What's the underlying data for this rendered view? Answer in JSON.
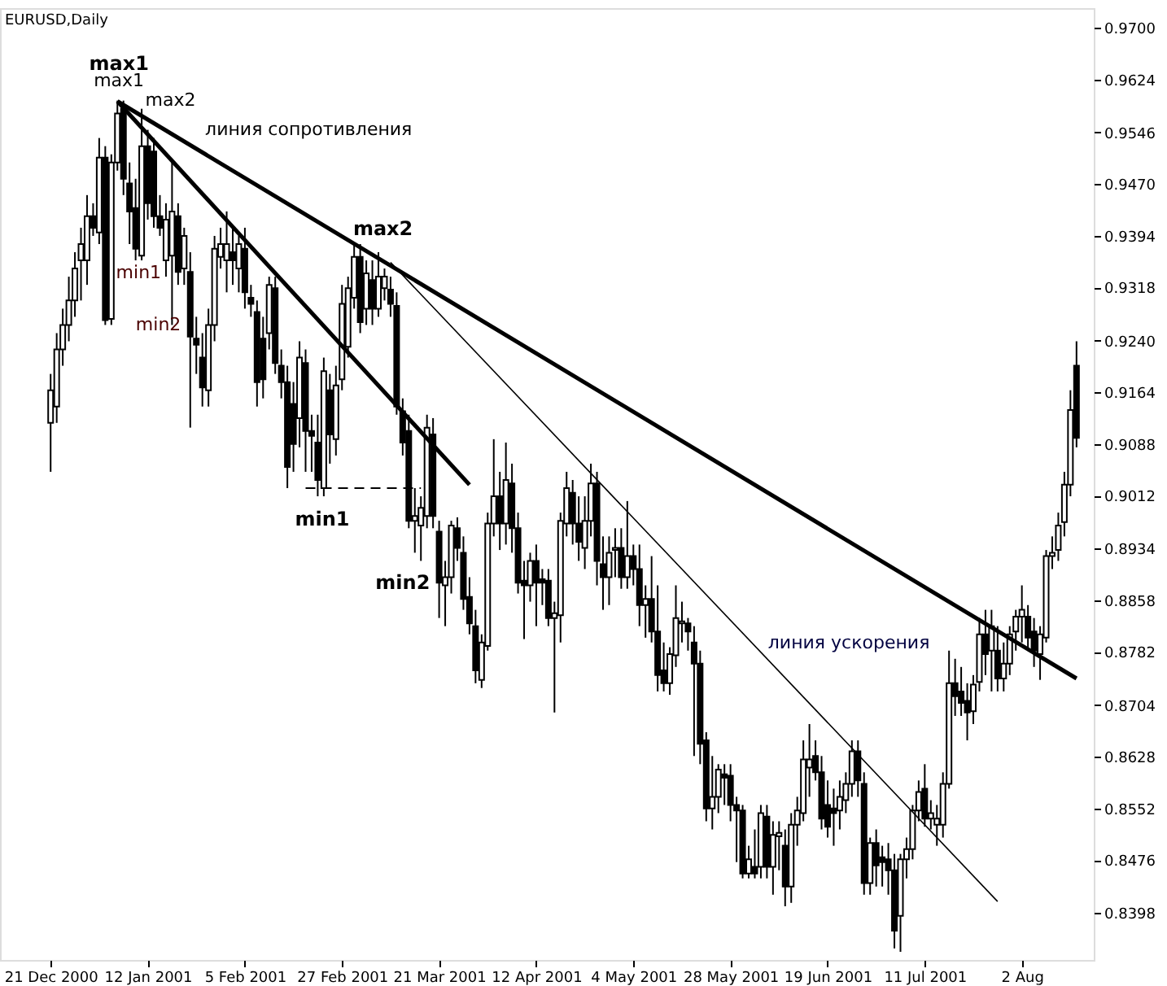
{
  "chart_data": {
    "type": "candlestick",
    "title": "EURUSD,Daily",
    "categories": [
      "21 Dec 2000",
      null,
      null,
      null,
      null,
      null,
      null,
      null,
      null,
      null,
      null,
      null,
      null,
      null,
      null,
      null,
      "12 Jan 2001",
      null,
      null,
      null,
      null,
      null,
      null,
      null,
      null,
      null,
      null,
      null,
      null,
      null,
      null,
      null,
      "5 Feb 2001",
      null,
      null,
      null,
      null,
      null,
      null,
      null,
      null,
      null,
      null,
      null,
      null,
      null,
      null,
      null,
      "27 Feb 2001",
      null,
      null,
      null,
      null,
      null,
      null,
      null,
      null,
      null,
      null,
      null,
      null,
      null,
      null,
      null,
      "21 Mar 2001",
      null,
      null,
      null,
      null,
      null,
      null,
      null,
      null,
      null,
      null,
      null,
      null,
      null,
      null,
      null,
      "12 Apr 2001",
      null,
      null,
      null,
      null,
      null,
      null,
      null,
      null,
      null,
      null,
      null,
      null,
      null,
      null,
      null,
      "4 May 2001",
      null,
      null,
      null,
      null,
      null,
      null,
      null,
      null,
      null,
      null,
      null,
      null,
      null,
      null,
      null,
      "28 May 2001",
      null,
      null,
      null,
      null,
      null,
      null,
      null,
      null,
      null,
      null,
      null,
      null,
      null,
      null,
      null,
      "19 Jun 2001",
      null,
      null,
      null,
      null,
      null,
      null,
      null,
      null,
      null,
      null,
      null,
      null,
      null,
      null,
      null,
      "11 Jul 2001",
      null,
      null,
      null,
      null,
      null,
      null,
      null,
      null,
      null,
      null,
      null,
      null,
      null,
      null,
      null,
      "2 Aug",
      null,
      null,
      null,
      null,
      null,
      null,
      null,
      null,
      null
    ],
    "ohlc": [
      [
        0.9119,
        0.9191,
        0.9047,
        0.9167
      ],
      [
        0.9143,
        0.9251,
        0.9119,
        0.9227
      ],
      [
        0.9227,
        0.9287,
        0.9203,
        0.9263
      ],
      [
        0.9263,
        0.9334,
        0.9239,
        0.9299
      ],
      [
        0.9299,
        0.937,
        0.9275,
        0.9346
      ],
      [
        0.9358,
        0.9406,
        0.9299,
        0.9382
      ],
      [
        0.9358,
        0.9454,
        0.9322,
        0.9423
      ],
      [
        0.9423,
        0.9442,
        0.9394,
        0.9406
      ],
      [
        0.9399,
        0.9538,
        0.9382,
        0.9509
      ],
      [
        0.9509,
        0.9526,
        0.9263,
        0.927
      ],
      [
        0.9272,
        0.9514,
        0.9263,
        0.9502
      ],
      [
        0.9502,
        0.9593,
        0.949,
        0.9574
      ],
      [
        0.9581,
        0.9593,
        0.9454,
        0.9478
      ],
      [
        0.9471,
        0.9502,
        0.9382,
        0.943
      ],
      [
        0.9435,
        0.9478,
        0.9358,
        0.9375
      ],
      [
        0.9365,
        0.9581,
        0.9358,
        0.9526
      ],
      [
        0.9526,
        0.955,
        0.9418,
        0.9442
      ],
      [
        0.9518,
        0.9538,
        0.9406,
        0.9423
      ],
      [
        0.9423,
        0.9454,
        0.9394,
        0.9406
      ],
      [
        0.9358,
        0.9442,
        0.9334,
        0.9418
      ],
      [
        0.9365,
        0.9502,
        0.9263,
        0.943
      ],
      [
        0.9423,
        0.9442,
        0.9322,
        0.9341
      ],
      [
        0.9346,
        0.9406,
        0.9322,
        0.9394
      ],
      [
        0.9341,
        0.937,
        0.9112,
        0.9246
      ],
      [
        0.9243,
        0.9275,
        0.9191,
        0.9234
      ],
      [
        0.9215,
        0.9251,
        0.9143,
        0.9171
      ],
      [
        0.9167,
        0.9287,
        0.9143,
        0.9263
      ],
      [
        0.9263,
        0.9394,
        0.9239,
        0.9375
      ],
      [
        0.9363,
        0.9406,
        0.9346,
        0.9382
      ],
      [
        0.9358,
        0.943,
        0.9311,
        0.9382
      ],
      [
        0.937,
        0.9406,
        0.9322,
        0.9358
      ],
      [
        0.9346,
        0.9394,
        0.9311,
        0.9382
      ],
      [
        0.9375,
        0.9406,
        0.9287,
        0.9311
      ],
      [
        0.9303,
        0.9322,
        0.9275,
        0.9294
      ],
      [
        0.9282,
        0.9299,
        0.9143,
        0.9179
      ],
      [
        0.9243,
        0.9275,
        0.9155,
        0.9183
      ],
      [
        0.9251,
        0.9334,
        0.9227,
        0.9322
      ],
      [
        0.9317,
        0.9334,
        0.9191,
        0.9207
      ],
      [
        0.9203,
        0.9227,
        0.9155,
        0.9179
      ],
      [
        0.9179,
        0.9203,
        0.9023,
        0.9054
      ],
      [
        0.9147,
        0.9179,
        0.9047,
        0.9088
      ],
      [
        0.9126,
        0.9239,
        0.9083,
        0.9215
      ],
      [
        0.9207,
        0.9227,
        0.9047,
        0.9107
      ],
      [
        0.9107,
        0.9131,
        0.9047,
        0.91
      ],
      [
        0.909,
        0.9131,
        0.9011,
        0.9035
      ],
      [
        0.9023,
        0.9215,
        0.9011,
        0.9195
      ],
      [
        0.9167,
        0.9191,
        0.9059,
        0.9102
      ],
      [
        0.9095,
        0.9203,
        0.9071,
        0.9174
      ],
      [
        0.9183,
        0.9322,
        0.9167,
        0.9294
      ],
      [
        0.9231,
        0.9334,
        0.9215,
        0.9317
      ],
      [
        0.9303,
        0.9382,
        0.9287,
        0.9363
      ],
      [
        0.9363,
        0.9382,
        0.9251,
        0.9267
      ],
      [
        0.9287,
        0.9358,
        0.9263,
        0.9339
      ],
      [
        0.9329,
        0.9358,
        0.9263,
        0.9287
      ],
      [
        0.9287,
        0.937,
        0.9275,
        0.9334
      ],
      [
        0.9317,
        0.9346,
        0.9299,
        0.9334
      ],
      [
        0.9315,
        0.9334,
        0.9275,
        0.9294
      ],
      [
        0.9291,
        0.9311,
        0.9131,
        0.9143
      ],
      [
        0.9136,
        0.9155,
        0.9071,
        0.909
      ],
      [
        0.9107,
        0.9131,
        0.8964,
        0.8975
      ],
      [
        0.8975,
        0.9023,
        0.8928,
        0.8982
      ],
      [
        0.8968,
        0.9011,
        0.8916,
        0.8994
      ],
      [
        0.8982,
        0.9131,
        0.8964,
        0.9112
      ],
      [
        0.9102,
        0.9126,
        0.8964,
        0.8982
      ],
      [
        0.8959,
        0.8975,
        0.8832,
        0.8884
      ],
      [
        0.888,
        0.8916,
        0.882,
        0.8892
      ],
      [
        0.8892,
        0.8975,
        0.8868,
        0.8968
      ],
      [
        0.8964,
        0.898,
        0.8916,
        0.8935
      ],
      [
        0.8928,
        0.8952,
        0.8844,
        0.886
      ],
      [
        0.8863,
        0.8892,
        0.8808,
        0.8824
      ],
      [
        0.882,
        0.8844,
        0.8736,
        0.8755
      ],
      [
        0.8741,
        0.8808,
        0.8729,
        0.8796
      ],
      [
        0.8791,
        0.8987,
        0.8784,
        0.8971
      ],
      [
        0.8971,
        0.9095,
        0.8952,
        0.9011
      ],
      [
        0.9011,
        0.9047,
        0.8932,
        0.8971
      ],
      [
        0.8971,
        0.909,
        0.894,
        0.9035
      ],
      [
        0.903,
        0.9059,
        0.8928,
        0.8964
      ],
      [
        0.8964,
        0.8987,
        0.8868,
        0.8884
      ],
      [
        0.8887,
        0.8916,
        0.8801,
        0.888
      ],
      [
        0.888,
        0.8928,
        0.8856,
        0.8916
      ],
      [
        0.8916,
        0.894,
        0.882,
        0.8884
      ],
      [
        0.8889,
        0.8904,
        0.8851,
        0.8884
      ],
      [
        0.8887,
        0.8904,
        0.882,
        0.8832
      ],
      [
        0.8832,
        0.8856,
        0.8693,
        0.8839
      ],
      [
        0.8836,
        0.8987,
        0.8796,
        0.8975
      ],
      [
        0.8971,
        0.9047,
        0.8952,
        0.9023
      ],
      [
        0.9016,
        0.9035,
        0.894,
        0.8971
      ],
      [
        0.8971,
        0.9011,
        0.8916,
        0.8944
      ],
      [
        0.8935,
        0.9011,
        0.8904,
        0.8975
      ],
      [
        0.8975,
        0.9059,
        0.8952,
        0.903
      ],
      [
        0.903,
        0.9047,
        0.888,
        0.8916
      ],
      [
        0.8911,
        0.8952,
        0.8844,
        0.8892
      ],
      [
        0.8892,
        0.8952,
        0.8851,
        0.8928
      ],
      [
        0.8932,
        0.8964,
        0.8892,
        0.8935
      ],
      [
        0.8935,
        0.8964,
        0.8875,
        0.8892
      ],
      [
        0.8892,
        0.9004,
        0.8875,
        0.8923
      ],
      [
        0.8923,
        0.894,
        0.888,
        0.8904
      ],
      [
        0.8904,
        0.894,
        0.882,
        0.8851
      ],
      [
        0.8851,
        0.888,
        0.8803,
        0.886
      ],
      [
        0.886,
        0.8923,
        0.8796,
        0.8812
      ],
      [
        0.8812,
        0.888,
        0.8724,
        0.8748
      ],
      [
        0.8755,
        0.8796,
        0.8724,
        0.8736
      ],
      [
        0.8736,
        0.8789,
        0.8719,
        0.8779
      ],
      [
        0.8777,
        0.888,
        0.876,
        0.8832
      ],
      [
        0.8824,
        0.8856,
        0.8796,
        0.8827
      ],
      [
        0.8824,
        0.8832,
        0.8784,
        0.8812
      ],
      [
        0.8796,
        0.882,
        0.8629,
        0.8765
      ],
      [
        0.8765,
        0.8784,
        0.8617,
        0.8647
      ],
      [
        0.8652,
        0.8664,
        0.8533,
        0.8552
      ],
      [
        0.8552,
        0.8629,
        0.8521,
        0.8569
      ],
      [
        0.8569,
        0.8617,
        0.8545,
        0.8609
      ],
      [
        0.8602,
        0.8617,
        0.8557,
        0.8597
      ],
      [
        0.86,
        0.8617,
        0.8533,
        0.8557
      ],
      [
        0.8557,
        0.8569,
        0.8473,
        0.8549
      ],
      [
        0.8549,
        0.8557,
        0.8449,
        0.8456
      ],
      [
        0.8456,
        0.8497,
        0.8449,
        0.8477
      ],
      [
        0.8466,
        0.8521,
        0.8449,
        0.8456
      ],
      [
        0.8466,
        0.8557,
        0.8449,
        0.8545
      ],
      [
        0.854,
        0.8557,
        0.8449,
        0.8466
      ],
      [
        0.8466,
        0.8533,
        0.8425,
        0.8513
      ],
      [
        0.8511,
        0.8533,
        0.8461,
        0.8516
      ],
      [
        0.8497,
        0.8521,
        0.8408,
        0.8437
      ],
      [
        0.8437,
        0.8545,
        0.8413,
        0.8528
      ],
      [
        0.8528,
        0.8569,
        0.8497,
        0.8549
      ],
      [
        0.8545,
        0.8652,
        0.8533,
        0.8624
      ],
      [
        0.8612,
        0.8676,
        0.8569,
        0.8624
      ],
      [
        0.8629,
        0.8652,
        0.8593,
        0.8605
      ],
      [
        0.8605,
        0.8629,
        0.8521,
        0.8537
      ],
      [
        0.8557,
        0.8593,
        0.8509,
        0.8525
      ],
      [
        0.8552,
        0.8581,
        0.8497,
        0.8545
      ],
      [
        0.8549,
        0.8593,
        0.8521,
        0.8569
      ],
      [
        0.8564,
        0.8605,
        0.8545,
        0.8588
      ],
      [
        0.8588,
        0.8652,
        0.8569,
        0.8636
      ],
      [
        0.8636,
        0.8652,
        0.8569,
        0.8593
      ],
      [
        0.8588,
        0.8605,
        0.8425,
        0.8442
      ],
      [
        0.8442,
        0.8509,
        0.8425,
        0.8501
      ],
      [
        0.8501,
        0.8521,
        0.8437,
        0.8468
      ],
      [
        0.848,
        0.8497,
        0.8437,
        0.8473
      ],
      [
        0.8477,
        0.8501,
        0.8425,
        0.8461
      ],
      [
        0.8461,
        0.8485,
        0.8346,
        0.8372
      ],
      [
        0.8394,
        0.8485,
        0.8341,
        0.8477
      ],
      [
        0.8477,
        0.8509,
        0.8449,
        0.8492
      ],
      [
        0.8492,
        0.8557,
        0.8477,
        0.8549
      ],
      [
        0.8549,
        0.8593,
        0.8533,
        0.8576
      ],
      [
        0.8581,
        0.8617,
        0.8525,
        0.8537
      ],
      [
        0.8537,
        0.8564,
        0.8521,
        0.8545
      ],
      [
        0.8528,
        0.8557,
        0.8497,
        0.8537
      ],
      [
        0.8528,
        0.8605,
        0.8509,
        0.8588
      ],
      [
        0.8588,
        0.8784,
        0.8581,
        0.8736
      ],
      [
        0.8736,
        0.8772,
        0.8688,
        0.8717
      ],
      [
        0.8724,
        0.876,
        0.8688,
        0.8707
      ],
      [
        0.871,
        0.8736,
        0.8652,
        0.8693
      ],
      [
        0.8695,
        0.8748,
        0.8676,
        0.8734
      ],
      [
        0.8738,
        0.8832,
        0.8724,
        0.8808
      ],
      [
        0.8808,
        0.8844,
        0.8748,
        0.8779
      ],
      [
        0.8784,
        0.8844,
        0.8724,
        0.882
      ],
      [
        0.8784,
        0.882,
        0.8724,
        0.8743
      ],
      [
        0.8743,
        0.8796,
        0.8724,
        0.8765
      ],
      [
        0.8765,
        0.882,
        0.8748,
        0.8808
      ],
      [
        0.8812,
        0.8844,
        0.8784,
        0.8834
      ],
      [
        0.8834,
        0.888,
        0.8796,
        0.8844
      ],
      [
        0.8834,
        0.8851,
        0.8784,
        0.8803
      ],
      [
        0.8812,
        0.8832,
        0.876,
        0.8784
      ],
      [
        0.8779,
        0.882,
        0.8741,
        0.8808
      ],
      [
        0.8803,
        0.8932,
        0.8796,
        0.8923
      ],
      [
        0.8923,
        0.8952,
        0.8904,
        0.8928
      ],
      [
        0.8932,
        0.8987,
        0.8916,
        0.8968
      ],
      [
        0.8973,
        0.9047,
        0.8952,
        0.9028
      ],
      [
        0.9028,
        0.9167,
        0.9011,
        0.9138
      ],
      [
        0.9203,
        0.9239,
        0.9083,
        0.9097
      ]
    ],
    "series": [
      {
        "type": "line",
        "color": "#000000",
        "line_style": "solid",
        "values": [
          null,
          null,
          null,
          null,
          null,
          null,
          null,
          null,
          null,
          null,
          null,
          0.9592,
          null,
          null,
          null,
          null,
          null,
          null,
          null,
          null,
          null,
          null,
          null,
          null,
          null,
          null,
          null,
          null,
          null,
          null,
          null,
          null,
          null,
          null,
          null,
          null,
          null,
          null,
          null,
          null,
          null,
          null,
          null,
          null,
          null,
          null,
          null,
          null,
          null,
          null,
          null,
          null,
          null,
          null,
          null,
          null,
          null,
          null,
          null,
          null,
          null,
          null,
          null,
          null,
          null,
          null,
          null,
          null,
          null,
          null,
          null,
          null,
          null,
          null,
          null,
          null,
          null,
          null,
          null,
          null,
          null,
          null,
          null,
          null,
          null,
          null,
          null,
          null,
          null,
          null,
          null,
          null,
          null,
          null,
          null,
          null,
          null,
          null,
          null,
          null,
          null,
          null,
          null,
          null,
          null,
          null,
          null,
          null,
          null,
          null,
          null,
          null,
          null,
          null,
          null,
          null,
          null,
          null,
          null,
          null,
          null,
          null,
          null,
          null,
          null,
          null,
          null,
          null,
          null,
          null,
          null,
          null,
          null,
          null,
          null,
          null,
          null,
          null,
          null,
          null,
          null,
          null,
          null,
          null,
          null,
          null,
          null,
          null,
          null,
          null,
          null,
          null,
          null,
          null,
          null,
          null,
          null,
          null,
          null,
          null,
          null,
          null,
          null,
          null,
          null,
          null,
          null,
          null,
          null,
          0.8743
        ]
      },
      {
        "type": "line",
        "color": "#000000",
        "line_style": "solid",
        "values": [
          null,
          null,
          null,
          null,
          null,
          null,
          null,
          null,
          null,
          null,
          null,
          0.9592,
          null,
          null,
          null,
          null,
          null,
          null,
          null,
          null,
          null,
          null,
          null,
          null,
          null,
          null,
          null,
          null,
          null,
          null,
          null,
          null,
          null,
          null,
          null,
          null,
          null,
          null,
          null,
          null,
          null,
          null,
          null,
          null,
          null,
          null,
          null,
          null,
          null,
          null,
          null,
          null,
          null,
          null,
          null,
          null,
          null,
          null,
          null,
          null,
          null,
          null,
          null,
          null,
          null,
          null,
          null,
          null,
          null,
          0.9028,
          null,
          null,
          null,
          null,
          null,
          null,
          null,
          null,
          null,
          null,
          null,
          null,
          null,
          null,
          null,
          null,
          null,
          null,
          null,
          null,
          null,
          null,
          null,
          null,
          null,
          null,
          null,
          null,
          null,
          null,
          null,
          null,
          null,
          null,
          null,
          null,
          null,
          null,
          null,
          null,
          null,
          null,
          null,
          null,
          null,
          null,
          null,
          null,
          null,
          null,
          null,
          null,
          null,
          null,
          null,
          null,
          null,
          null,
          null,
          null,
          null,
          null,
          null,
          null,
          null,
          null,
          null,
          null,
          null,
          null,
          null,
          null,
          null,
          null,
          null,
          null,
          null,
          null,
          null,
          null,
          null,
          null,
          null,
          null,
          null,
          null,
          null,
          null,
          null,
          null,
          null,
          null,
          null,
          null,
          null,
          null,
          null,
          null,
          null,
          null
        ]
      },
      {
        "type": "line",
        "color": "#000000",
        "line_style": "solid",
        "values": [
          null,
          null,
          null,
          null,
          null,
          null,
          null,
          null,
          null,
          null,
          null,
          null,
          null,
          null,
          null,
          null,
          null,
          null,
          null,
          null,
          null,
          null,
          null,
          null,
          null,
          null,
          null,
          null,
          null,
          null,
          null,
          null,
          null,
          null,
          null,
          null,
          null,
          null,
          null,
          null,
          null,
          null,
          null,
          null,
          null,
          null,
          null,
          null,
          null,
          null,
          null,
          null,
          null,
          null,
          null,
          null,
          0.9355,
          null,
          null,
          null,
          null,
          null,
          null,
          null,
          null,
          null,
          null,
          null,
          null,
          null,
          null,
          null,
          null,
          null,
          null,
          null,
          null,
          null,
          null,
          null,
          null,
          null,
          null,
          null,
          null,
          null,
          null,
          null,
          null,
          null,
          null,
          null,
          null,
          null,
          null,
          null,
          null,
          null,
          null,
          null,
          null,
          null,
          null,
          null,
          null,
          null,
          null,
          null,
          null,
          null,
          null,
          null,
          null,
          null,
          null,
          null,
          null,
          null,
          null,
          null,
          null,
          null,
          null,
          null,
          null,
          null,
          null,
          null,
          null,
          null,
          null,
          null,
          null,
          null,
          null,
          null,
          null,
          null,
          null,
          null,
          null,
          null,
          null,
          null,
          null,
          null,
          null,
          null,
          null,
          null,
          null,
          null,
          null,
          null,
          null,
          null,
          0.8415,
          null,
          null,
          null,
          null,
          null,
          null,
          null,
          null,
          null,
          null,
          null,
          null,
          null
        ]
      },
      {
        "type": "line",
        "color": "#000000",
        "line_style": "dashed",
        "values": [
          null,
          null,
          null,
          null,
          null,
          null,
          null,
          null,
          null,
          null,
          null,
          null,
          null,
          null,
          null,
          null,
          null,
          null,
          null,
          null,
          null,
          null,
          null,
          null,
          null,
          null,
          null,
          null,
          null,
          null,
          null,
          null,
          null,
          null,
          null,
          null,
          null,
          null,
          null,
          null,
          null,
          null,
          0.9023,
          null,
          null,
          null,
          null,
          null,
          null,
          null,
          null,
          null,
          null,
          null,
          null,
          null,
          null,
          null,
          null,
          null,
          null,
          0.9023,
          null,
          null,
          null,
          null,
          null,
          null,
          null,
          null,
          null,
          null,
          null,
          null,
          null,
          null,
          null,
          null,
          null,
          null,
          null,
          null,
          null,
          null,
          null,
          null,
          null,
          null,
          null,
          null,
          null,
          null,
          null,
          null,
          null,
          null,
          null,
          null,
          null,
          null,
          null,
          null,
          null,
          null,
          null,
          null,
          null,
          null,
          null,
          null,
          null,
          null,
          null,
          null,
          null,
          null,
          null,
          null,
          null,
          null,
          null,
          null,
          null,
          null,
          null,
          null,
          null,
          null,
          null,
          null,
          null,
          null,
          null,
          null,
          null,
          null,
          null,
          null,
          null,
          null,
          null,
          null,
          null,
          null,
          null,
          null,
          null,
          null,
          null,
          null,
          null,
          null,
          null,
          null,
          null,
          null,
          null,
          null,
          null,
          null,
          null,
          null,
          null,
          null,
          null,
          null,
          null,
          null,
          null,
          null
        ]
      }
    ],
    "annotations": [
      "max1",
      {
        "text": "max1",
        "y": 0.9593
      },
      "max2",
      "min1",
      "min2",
      "max2",
      {
        "text": "min1",
        "y": 0.9023
      },
      "min2",
      "линия сопротивления",
      "линия ускорения"
    ],
    "ylim": [
      0.8329,
      0.9729
    ],
    "yticks": [
      {
        "value": 0.97,
        "label": "0.9700"
      },
      0.9624,
      0.9546,
      {
        "value": 0.947,
        "label": "0.9470"
      },
      0.9394,
      0.9318,
      {
        "value": 0.924,
        "label": "0.9240"
      },
      0.9164,
      0.9088,
      0.9012,
      0.8934,
      {
        "value": 0.8858,
        "label": "0.8858"
      },
      0.8782,
      0.8704,
      0.8628,
      0.8552,
      0.8476,
      0.8398
    ],
    "grid": false
  }
}
